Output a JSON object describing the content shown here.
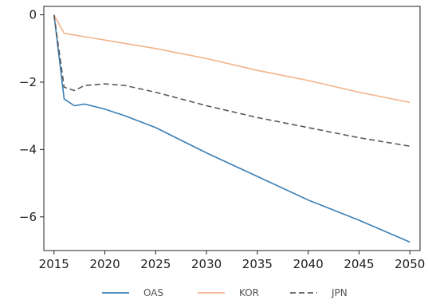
{
  "chart_data": {
    "type": "line",
    "title": "",
    "xlabel": "",
    "ylabel": "",
    "xlim": [
      2014,
      2051
    ],
    "ylim": [
      -7.0,
      0.25
    ],
    "xticks": [
      2015,
      2020,
      2025,
      2030,
      2035,
      2040,
      2045,
      2050
    ],
    "yticks": [
      0,
      -2,
      -4,
      -6
    ],
    "x_tick_labels": [
      "2015",
      "2020",
      "2025",
      "2030",
      "2035",
      "2040",
      "2045",
      "2050"
    ],
    "y_tick_labels": [
      "0",
      "−2",
      "−4",
      "−6"
    ],
    "grid": false,
    "legend_placement": "bottom-center",
    "series": [
      {
        "name": "OAS",
        "color": "#3a7fb6",
        "style": "solid",
        "x": [
          2015,
          2016,
          2017,
          2018,
          2020,
          2022,
          2025,
          2027,
          2030,
          2035,
          2040,
          2045,
          2050
        ],
        "y": [
          0.0,
          -2.5,
          -2.7,
          -2.65,
          -2.8,
          -3.0,
          -3.35,
          -3.65,
          -4.1,
          -4.8,
          -5.5,
          -6.1,
          -6.75
        ]
      },
      {
        "name": "KOR",
        "color": "#f2b38a",
        "style": "solid",
        "x": [
          2015,
          2016,
          2018,
          2020,
          2025,
          2030,
          2035,
          2040,
          2045,
          2050
        ],
        "y": [
          0.0,
          -0.55,
          -0.65,
          -0.75,
          -1.0,
          -1.3,
          -1.65,
          -1.95,
          -2.3,
          -2.6
        ]
      },
      {
        "name": "JPN",
        "color": "#5a5a5a",
        "style": "dashed",
        "x": [
          2015,
          2016,
          2017,
          2018,
          2020,
          2022,
          2025,
          2030,
          2035,
          2040,
          2045,
          2050
        ],
        "y": [
          0.0,
          -2.15,
          -2.25,
          -2.1,
          -2.05,
          -2.1,
          -2.3,
          -2.7,
          -3.05,
          -3.35,
          -3.65,
          -3.9
        ]
      }
    ]
  }
}
